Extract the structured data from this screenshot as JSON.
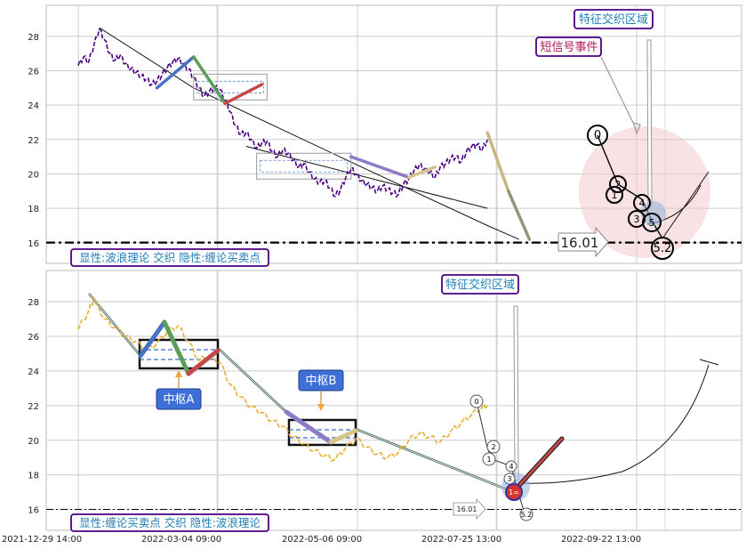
{
  "chart_data": [
    {
      "type": "line",
      "panel": "top",
      "price_series_color": "#4b0082",
      "ylim": [
        14.8,
        29.8
      ],
      "yticks": [
        "16",
        "18",
        "20",
        "22",
        "24",
        "26",
        "28"
      ],
      "support_level": 16.01,
      "support_label": "16.01",
      "annotations": {
        "zone": "特征交织区域",
        "signal": "短信号事件",
        "legend": "显性:波浪理论 交织 隐性:缠论买卖点"
      },
      "wave_labels": [
        "0",
        "1",
        "2",
        "3",
        "4",
        "5",
        "5.2"
      ],
      "price": [
        [
          0.0,
          26.3
        ],
        [
          0.01,
          26.8
        ],
        [
          0.02,
          26.5
        ],
        [
          0.03,
          27.5
        ],
        [
          0.04,
          28.4
        ],
        [
          0.05,
          27.8
        ],
        [
          0.06,
          27.0
        ],
        [
          0.07,
          26.6
        ],
        [
          0.08,
          26.9
        ],
        [
          0.09,
          26.4
        ],
        [
          0.1,
          26.1
        ],
        [
          0.11,
          25.9
        ],
        [
          0.12,
          25.7
        ],
        [
          0.13,
          25.5
        ],
        [
          0.14,
          25.2
        ],
        [
          0.15,
          25.4
        ],
        [
          0.16,
          25.8
        ],
        [
          0.17,
          26.2
        ],
        [
          0.18,
          26.5
        ],
        [
          0.19,
          26.7
        ],
        [
          0.2,
          26.4
        ],
        [
          0.21,
          26.1
        ],
        [
          0.22,
          25.6
        ],
        [
          0.23,
          25.0
        ],
        [
          0.24,
          24.5
        ],
        [
          0.25,
          24.8
        ],
        [
          0.26,
          25.0
        ],
        [
          0.27,
          24.9
        ],
        [
          0.28,
          24.3
        ],
        [
          0.29,
          23.6
        ],
        [
          0.3,
          22.8
        ],
        [
          0.31,
          22.3
        ],
        [
          0.32,
          22.4
        ],
        [
          0.33,
          22.0
        ],
        [
          0.34,
          21.5
        ],
        [
          0.35,
          21.8
        ],
        [
          0.36,
          21.9
        ],
        [
          0.37,
          21.3
        ],
        [
          0.38,
          21.0
        ],
        [
          0.39,
          21.4
        ],
        [
          0.4,
          21.2
        ],
        [
          0.41,
          20.8
        ],
        [
          0.42,
          20.4
        ],
        [
          0.43,
          20.6
        ],
        [
          0.44,
          20.1
        ],
        [
          0.45,
          19.7
        ],
        [
          0.46,
          19.5
        ],
        [
          0.47,
          19.6
        ],
        [
          0.48,
          19.2
        ],
        [
          0.49,
          18.7
        ],
        [
          0.5,
          19.1
        ],
        [
          0.51,
          19.8
        ],
        [
          0.52,
          20.3
        ],
        [
          0.53,
          20.0
        ],
        [
          0.54,
          19.6
        ],
        [
          0.55,
          19.4
        ],
        [
          0.56,
          19.2
        ],
        [
          0.57,
          19.0
        ],
        [
          0.58,
          19.3
        ],
        [
          0.59,
          19.1
        ],
        [
          0.6,
          18.9
        ],
        [
          0.61,
          18.8
        ],
        [
          0.62,
          19.4
        ],
        [
          0.63,
          19.7
        ],
        [
          0.64,
          20.2
        ],
        [
          0.65,
          20.5
        ],
        [
          0.66,
          20.3
        ],
        [
          0.67,
          20.1
        ],
        [
          0.68,
          19.8
        ],
        [
          0.69,
          20.4
        ],
        [
          0.7,
          20.6
        ],
        [
          0.71,
          20.9
        ],
        [
          0.72,
          21.0
        ],
        [
          0.73,
          20.7
        ],
        [
          0.74,
          21.3
        ],
        [
          0.75,
          21.6
        ],
        [
          0.76,
          21.7
        ],
        [
          0.77,
          21.4
        ],
        [
          0.78,
          22.0
        ]
      ],
      "trend_line": [
        [
          0.04,
          28.5
        ],
        [
          0.22,
          25.0
        ],
        [
          0.54,
          20.4
        ],
        [
          0.78,
          17.0
        ],
        [
          0.84,
          16.2
        ]
      ],
      "trend_line_2": [
        [
          0.32,
          21.6
        ],
        [
          0.78,
          18.0
        ]
      ],
      "center_box": [
        0.22,
        0.36,
        24.3,
        25.8
      ],
      "center_box_2": [
        0.34,
        0.52,
        19.7,
        21.2
      ]
    },
    {
      "type": "line",
      "panel": "bottom",
      "price_series_color": "#e8b030",
      "ylim": [
        14.8,
        29.8
      ],
      "yticks": [
        "16",
        "18",
        "20",
        "22",
        "24",
        "26",
        "28"
      ],
      "xticks": [
        "2021-12-29 14:00",
        "2022-03-04 09:00",
        "2022-05-06 09:00",
        "2022-07-25 13:00",
        "2022-09-22 13:00"
      ],
      "support_level": 16.01,
      "support_label": "16.01",
      "annotations": {
        "zone": "特征交织区域",
        "center_a": "中枢A",
        "center_b": "中枢B",
        "legend": "显性:缠论买卖点 交织 隐性:波浪理论"
      },
      "wave_labels": [
        "0",
        "1",
        "2",
        "3",
        "4",
        "5",
        "5.2",
        "1="
      ],
      "price": [
        [
          0.0,
          26.4
        ],
        [
          0.02,
          27.5
        ],
        [
          0.03,
          28.2
        ],
        [
          0.05,
          27.0
        ],
        [
          0.07,
          26.5
        ],
        [
          0.09,
          26.0
        ],
        [
          0.11,
          25.7
        ],
        [
          0.13,
          25.2
        ],
        [
          0.15,
          25.6
        ],
        [
          0.17,
          26.3
        ],
        [
          0.19,
          26.6
        ],
        [
          0.21,
          25.7
        ],
        [
          0.23,
          24.6
        ],
        [
          0.25,
          24.9
        ],
        [
          0.27,
          24.5
        ],
        [
          0.29,
          23.2
        ],
        [
          0.31,
          22.5
        ],
        [
          0.33,
          21.9
        ],
        [
          0.35,
          21.6
        ],
        [
          0.37,
          21.1
        ],
        [
          0.39,
          20.8
        ],
        [
          0.41,
          20.2
        ],
        [
          0.43,
          19.8
        ],
        [
          0.45,
          19.4
        ],
        [
          0.47,
          19.1
        ],
        [
          0.49,
          18.9
        ],
        [
          0.51,
          19.6
        ],
        [
          0.53,
          20.1
        ],
        [
          0.55,
          19.6
        ],
        [
          0.57,
          19.2
        ],
        [
          0.59,
          19.0
        ],
        [
          0.61,
          19.3
        ],
        [
          0.63,
          20.0
        ],
        [
          0.65,
          20.4
        ],
        [
          0.67,
          20.2
        ],
        [
          0.69,
          19.9
        ],
        [
          0.71,
          20.5
        ],
        [
          0.73,
          21.0
        ],
        [
          0.75,
          21.5
        ],
        [
          0.77,
          21.9
        ],
        [
          0.78,
          22.0
        ]
      ]
    }
  ]
}
